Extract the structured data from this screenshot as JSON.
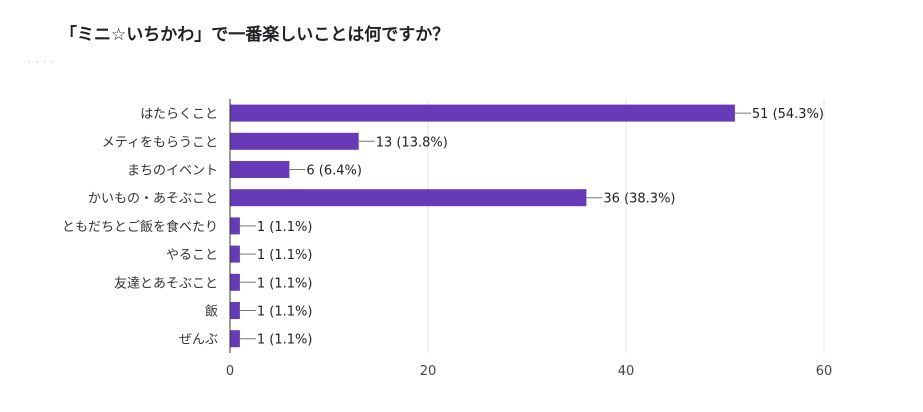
{
  "chart_data": {
    "type": "bar",
    "orientation": "horizontal",
    "title": "「ミニ☆いちかわ」で一番楽しいことは何ですか？",
    "categories": [
      "はたらくこと",
      "メティをもらうこと",
      "まちのイベント",
      "かいもの・あそぶこと",
      "ともだちとご飯を食べたり",
      "やること",
      "友達とあそぶこと",
      "飯",
      "ぜんぶ"
    ],
    "values": [
      51,
      13,
      6,
      36,
      1,
      1,
      1,
      1,
      1
    ],
    "value_labels": [
      "51 (54.3%)",
      "13 (13.8%)",
      "6 (6.4%)",
      "36 (38.3%)",
      "1 (1.1%)",
      "1 (1.1%)",
      "1 (1.1%)",
      "1 (1.1%)",
      "1 (1.1%)"
    ],
    "xlim": [
      0,
      60
    ],
    "xticks": [
      "0",
      "20",
      "40",
      "60"
    ],
    "grid": true,
    "legend": "none",
    "bar_color": "#673ab7"
  }
}
